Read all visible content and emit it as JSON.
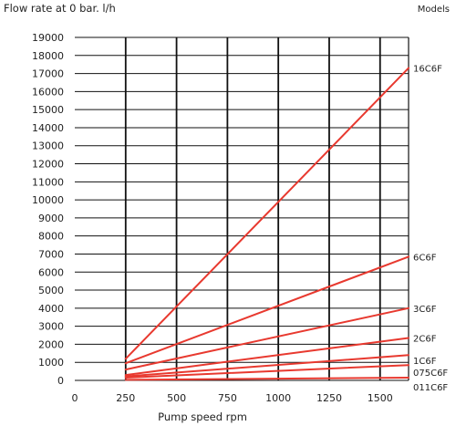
{
  "chart_data": {
    "type": "line",
    "title": "",
    "ylabel": "Flow rate at 0 bar. l/h",
    "xlabel": "Pump speed rpm",
    "legend_title": "Models",
    "xlim": [
      0,
      1640
    ],
    "ylim": [
      0,
      19000
    ],
    "x_ticks": [
      0,
      250,
      500,
      750,
      1000,
      1250,
      1500
    ],
    "y_ticks": [
      0,
      1000,
      2000,
      3000,
      4000,
      5000,
      6000,
      7000,
      8000,
      9000,
      10000,
      11000,
      12000,
      13000,
      14000,
      15000,
      16000,
      17000,
      18000,
      19000
    ],
    "grid": true,
    "line_color": "#e8392f",
    "series": [
      {
        "name": "16C6F",
        "x": [
          250,
          1640
        ],
        "y": [
          1200,
          17300
        ]
      },
      {
        "name": "6C6F",
        "x": [
          250,
          1640
        ],
        "y": [
          950,
          6850
        ]
      },
      {
        "name": "3C6F",
        "x": [
          250,
          1640
        ],
        "y": [
          600,
          4000
        ]
      },
      {
        "name": "2C6F",
        "x": [
          250,
          1640
        ],
        "y": [
          300,
          2350
        ]
      },
      {
        "name": "1C6F",
        "x": [
          250,
          1640
        ],
        "y": [
          220,
          1400
        ]
      },
      {
        "name": "075C6F",
        "x": [
          250,
          1640
        ],
        "y": [
          150,
          850
        ]
      },
      {
        "name": "011C6F",
        "x": [
          250,
          1640
        ],
        "y": [
          30,
          150
        ]
      }
    ]
  }
}
